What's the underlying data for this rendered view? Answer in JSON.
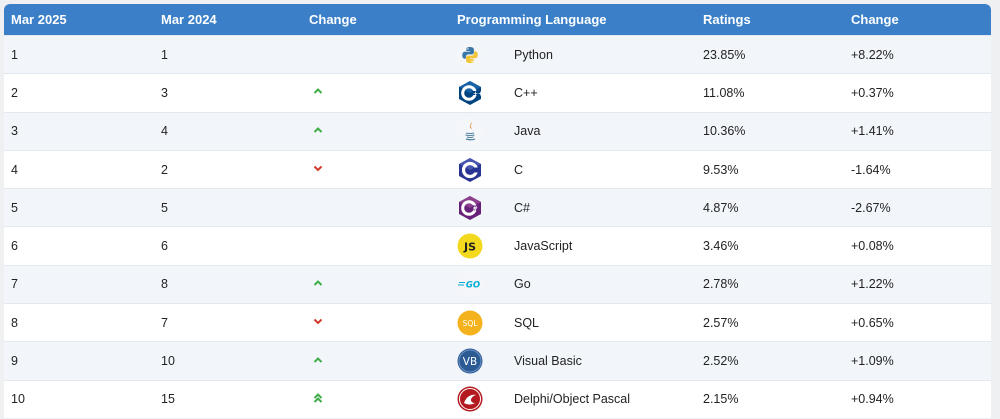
{
  "headers": [
    "Mar 2025",
    "Mar 2024",
    "Change",
    "Programming Language",
    "Ratings",
    "Change"
  ],
  "colors": {
    "header_bg": "#3a7fc8",
    "up": "#3fae49",
    "down": "#d23a2c"
  },
  "rows": [
    {
      "rank_2025": "1",
      "rank_2024": "1",
      "change_icon": "none",
      "logo_icon": "python-logo-icon",
      "language": "Python",
      "rating": "23.85%",
      "rating_change": "+8.22%"
    },
    {
      "rank_2025": "2",
      "rank_2024": "3",
      "change_icon": "chevron-up-icon",
      "logo_icon": "cplusplus-logo-icon",
      "language": "C++",
      "rating": "11.08%",
      "rating_change": "+0.37%"
    },
    {
      "rank_2025": "3",
      "rank_2024": "4",
      "change_icon": "chevron-up-icon",
      "logo_icon": "java-logo-icon",
      "language": "Java",
      "rating": "10.36%",
      "rating_change": "+1.41%"
    },
    {
      "rank_2025": "4",
      "rank_2024": "2",
      "change_icon": "chevron-down-icon",
      "logo_icon": "c-logo-icon",
      "language": "C",
      "rating": "9.53%",
      "rating_change": "-1.64%"
    },
    {
      "rank_2025": "5",
      "rank_2024": "5",
      "change_icon": "none",
      "logo_icon": "csharp-logo-icon",
      "language": "C#",
      "rating": "4.87%",
      "rating_change": "-2.67%"
    },
    {
      "rank_2025": "6",
      "rank_2024": "6",
      "change_icon": "none",
      "logo_icon": "javascript-logo-icon",
      "logo_text": "JS",
      "language": "JavaScript",
      "rating": "3.46%",
      "rating_change": "+0.08%"
    },
    {
      "rank_2025": "7",
      "rank_2024": "8",
      "change_icon": "chevron-up-icon",
      "logo_icon": "go-logo-icon",
      "logo_text": "GO",
      "language": "Go",
      "rating": "2.78%",
      "rating_change": "+1.22%"
    },
    {
      "rank_2025": "8",
      "rank_2024": "7",
      "change_icon": "chevron-down-icon",
      "logo_icon": "sql-logo-icon",
      "logo_text": "SQL",
      "language": "SQL",
      "rating": "2.57%",
      "rating_change": "+0.65%"
    },
    {
      "rank_2025": "9",
      "rank_2024": "10",
      "change_icon": "chevron-up-icon",
      "logo_icon": "visual-basic-logo-icon",
      "logo_text": "VB",
      "language": "Visual Basic",
      "rating": "2.52%",
      "rating_change": "+1.09%"
    },
    {
      "rank_2025": "10",
      "rank_2024": "15",
      "change_icon": "double-chevron-up-icon",
      "logo_icon": "delphi-logo-icon",
      "language": "Delphi/Object Pascal",
      "rating": "2.15%",
      "rating_change": "+0.94%"
    }
  ]
}
